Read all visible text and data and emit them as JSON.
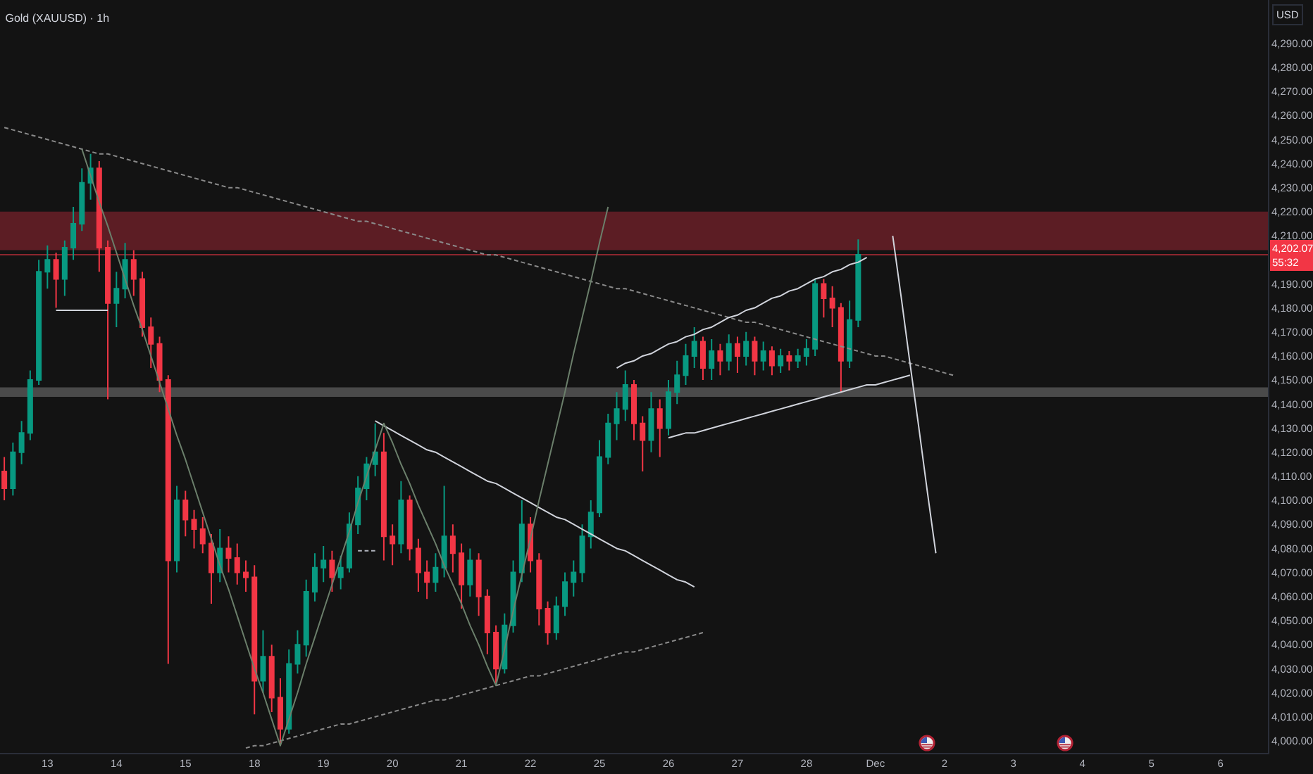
{
  "chart_data": {
    "type": "candlestick",
    "title": "Gold (XAUUSD) · 1h",
    "ylabel": "USD",
    "categories": [
      null,
      null,
      null,
      null,
      null,
      "13",
      null,
      null,
      null,
      null,
      null,
      null,
      null,
      "14",
      null,
      null,
      null,
      null,
      null,
      null,
      null,
      "15",
      null,
      null,
      null,
      null,
      null,
      null,
      null,
      "18",
      null,
      null,
      null,
      null,
      null,
      null,
      null,
      "19",
      null,
      null,
      null,
      null,
      null,
      null,
      null,
      "20",
      null,
      null,
      null,
      null,
      null,
      null,
      null,
      "21",
      null,
      null,
      null,
      null,
      null,
      null,
      null,
      "22",
      null,
      null,
      null,
      null,
      null,
      null,
      null,
      "25",
      null,
      null,
      null,
      null,
      null,
      null,
      null,
      "26",
      null,
      null,
      null,
      null,
      null,
      null,
      null,
      "27",
      null,
      null,
      null,
      null,
      null,
      null,
      null,
      "28",
      null,
      null,
      null,
      null,
      null,
      null,
      null,
      "Dec",
      null,
      null,
      null,
      null,
      null,
      null,
      null,
      "2",
      null,
      null,
      null,
      null,
      null,
      null,
      null,
      "3",
      null,
      null,
      null,
      null,
      null,
      null,
      null,
      "4",
      null,
      null,
      null,
      null,
      null,
      null,
      null,
      "5",
      null,
      null,
      null,
      null,
      null,
      null,
      null,
      "6",
      null,
      null,
      null,
      null,
      null
    ],
    "ylim": [
      3995,
      4308
    ],
    "yticks": [
      {
        "value": 4000,
        "label": "4,000.00"
      },
      {
        "value": 4010,
        "label": "4,010.00"
      },
      {
        "value": 4020,
        "label": "4,020.00"
      },
      {
        "value": 4030,
        "label": "4,030.00"
      },
      {
        "value": 4040,
        "label": "4,040.00"
      },
      {
        "value": 4050,
        "label": "4,050.00"
      },
      {
        "value": 4060,
        "label": "4,060.00"
      },
      {
        "value": 4070,
        "label": "4,070.00"
      },
      {
        "value": 4080,
        "label": "4,080.00"
      },
      {
        "value": 4090,
        "label": "4,090.00"
      },
      {
        "value": 4100,
        "label": "4,100.00"
      },
      {
        "value": 4110,
        "label": "4,110.00"
      },
      {
        "value": 4120,
        "label": "4,120.00"
      },
      {
        "value": 4130,
        "label": "4,130.00"
      },
      {
        "value": 4140,
        "label": "4,140.00"
      },
      {
        "value": 4150,
        "label": "4,150.00"
      },
      {
        "value": 4160,
        "label": "4,160.00"
      },
      {
        "value": 4170,
        "label": "4,170.00"
      },
      {
        "value": 4180,
        "label": "4,180.00"
      },
      {
        "value": 4190,
        "label": "4,190.00"
      },
      {
        "value": 4210,
        "label": "4,210.00"
      },
      {
        "value": 4220,
        "label": "4,220.00"
      },
      {
        "value": 4230,
        "label": "4,230.00"
      },
      {
        "value": 4240,
        "label": "4,240.00"
      },
      {
        "value": 4250,
        "label": "4,250.00"
      },
      {
        "value": 4260,
        "label": "4,260.00"
      },
      {
        "value": 4270,
        "label": "4,270.00"
      },
      {
        "value": 4280,
        "label": "4,280.00"
      },
      {
        "value": 4290,
        "label": "4,290.00"
      }
    ],
    "bands": [
      {
        "axis": "y",
        "from": 4204,
        "to": 4220,
        "color": "#5c1d24"
      },
      {
        "axis": "y",
        "from": 4143,
        "to": 4147,
        "color": "#4a4a4a"
      }
    ],
    "ref_lines": [
      {
        "axis": "y",
        "value": 4202.07,
        "label": "4,202.07\n55:32",
        "color": "#f23645",
        "line_style": "solid"
      }
    ],
    "series": [
      {
        "type": "line",
        "color": "#8a8a8a",
        "line_style": "dashed",
        "values": [
          4255,
          4254,
          4253,
          4252,
          4251,
          4250,
          4249,
          4248,
          4247,
          4246,
          4245,
          4244,
          4244,
          4243,
          4242,
          4241,
          4240,
          4239,
          4238,
          4237,
          4236,
          4235,
          4234,
          4233,
          4232,
          4231,
          4230,
          4230,
          4229,
          4228,
          4227,
          4226,
          4225,
          4224,
          4223,
          4222,
          4221,
          4220,
          4219,
          4218,
          4217,
          4216,
          4216,
          4215,
          4214,
          4213,
          4212,
          4211,
          4210,
          4209,
          4208,
          4207,
          4206,
          4205,
          4204,
          4203,
          4202,
          4202,
          4201,
          4200,
          4199,
          4198,
          4197,
          4196,
          4195,
          4194,
          4193,
          4192,
          4191,
          4190,
          4189,
          4188,
          4188,
          4187,
          4186,
          4185,
          4184,
          4183,
          4182,
          4181,
          4180,
          4179,
          4178,
          4177,
          4176,
          4175,
          4174,
          4174,
          4173,
          4172,
          4171,
          4170,
          4169,
          4168,
          4167,
          4166,
          4165,
          4164,
          4163,
          4162,
          4161,
          4160,
          4160,
          4159,
          4158,
          4157,
          4156,
          4155,
          4154,
          4153,
          4152,
          null,
          null,
          null,
          null,
          null,
          null,
          null,
          null,
          null,
          null,
          null,
          null,
          null,
          null,
          null,
          null,
          null,
          null,
          null,
          null,
          null,
          null,
          null,
          null,
          null,
          null,
          null,
          null,
          null,
          null,
          null,
          null,
          null,
          null,
          null,
          null
        ]
      },
      {
        "type": "line",
        "color": "#d1d4dc",
        "line_style": "solid",
        "values": [
          null,
          null,
          null,
          null,
          null,
          null,
          null,
          null,
          null,
          null,
          null,
          null,
          null,
          null,
          null,
          null,
          null,
          null,
          null,
          null,
          null,
          null,
          null,
          null,
          null,
          null,
          null,
          null,
          null,
          null,
          null,
          null,
          null,
          null,
          null,
          null,
          null,
          null,
          null,
          null,
          null,
          null,
          null,
          null,
          null,
          null,
          null,
          null,
          null,
          null,
          null,
          null,
          null,
          null,
          null,
          null,
          null,
          null,
          null,
          null,
          null,
          null,
          null,
          null,
          null,
          null,
          null,
          null,
          null,
          null,
          null,
          4155,
          4157,
          4158,
          4160,
          4161,
          4163,
          4165,
          4166,
          4168,
          4169,
          4171,
          4172,
          4174,
          4176,
          4177,
          4179,
          4180,
          4182,
          4184,
          4185,
          4187,
          4188,
          4190,
          4192,
          4193,
          4195,
          4196,
          4198,
          4199,
          4201,
          null,
          null,
          null,
          null,
          null,
          null,
          null,
          null,
          null,
          null,
          null,
          null,
          null,
          null,
          null,
          null,
          null,
          null,
          null,
          null,
          null,
          null,
          null,
          null,
          null,
          null,
          null,
          null,
          null,
          null,
          null,
          null,
          null,
          null,
          null,
          null,
          null,
          null,
          null,
          null,
          null,
          null,
          null,
          null,
          null,
          null
        ]
      },
      {
        "type": "line",
        "color": "#d1d4dc",
        "line_style": "solid",
        "values": [
          null,
          null,
          null,
          null,
          null,
          null,
          null,
          null,
          null,
          null,
          null,
          null,
          null,
          null,
          null,
          null,
          null,
          null,
          null,
          null,
          null,
          null,
          null,
          null,
          null,
          null,
          null,
          null,
          null,
          null,
          null,
          null,
          null,
          null,
          null,
          null,
          null,
          null,
          null,
          null,
          null,
          null,
          null,
          null,
          null,
          null,
          null,
          null,
          null,
          null,
          null,
          null,
          null,
          null,
          null,
          null,
          null,
          null,
          null,
          null,
          null,
          null,
          null,
          null,
          null,
          null,
          null,
          null,
          null,
          null,
          null,
          null,
          null,
          null,
          null,
          null,
          null,
          4126,
          4127,
          4128,
          4128,
          4129,
          4130,
          4131,
          4132,
          4133,
          4134,
          4135,
          4136,
          4137,
          4138,
          4139,
          4140,
          4141,
          4142,
          4143,
          4144,
          4145,
          4146,
          4147,
          4148,
          4148,
          4149,
          4150,
          4151,
          4152,
          null,
          null,
          null,
          null,
          null,
          null,
          null,
          null,
          null,
          null,
          null,
          null,
          null,
          null,
          null,
          null,
          null,
          null,
          null,
          null,
          null,
          null,
          null,
          null,
          null,
          null,
          null,
          null,
          null,
          null,
          null,
          null,
          null,
          null,
          null,
          null,
          null,
          null,
          null,
          null,
          null
        ]
      },
      {
        "type": "line",
        "color": "#d1d4dc",
        "line_style": "solid",
        "values": [
          null,
          null,
          null,
          null,
          null,
          null,
          null,
          null,
          null,
          null,
          null,
          null,
          null,
          null,
          null,
          null,
          null,
          null,
          null,
          null,
          null,
          null,
          null,
          null,
          null,
          null,
          null,
          null,
          null,
          null,
          null,
          null,
          null,
          null,
          null,
          null,
          null,
          null,
          null,
          null,
          null,
          null,
          null,
          4133,
          4131,
          4129,
          4127,
          4125,
          4123,
          4121,
          4120,
          4118,
          4116,
          4114,
          4112,
          4110,
          4108,
          4107,
          4105,
          4103,
          4101,
          4099,
          4097,
          4095,
          4093,
          4092,
          4090,
          4088,
          4086,
          4084,
          4082,
          4080,
          4079,
          4077,
          4075,
          4073,
          4071,
          4069,
          4067,
          4066,
          4064,
          null,
          null,
          null,
          null,
          null,
          null,
          null,
          null,
          null,
          null,
          null,
          null,
          null,
          null,
          null,
          null,
          null,
          null,
          null,
          null,
          null,
          null,
          null,
          null,
          null,
          null,
          null,
          null,
          null,
          null,
          null,
          null,
          null,
          null,
          null,
          null,
          null,
          null,
          null,
          null,
          null,
          null,
          null,
          null,
          null,
          null,
          null,
          null,
          null,
          null,
          null,
          null,
          null,
          null,
          null,
          null,
          null,
          null,
          null,
          null,
          null,
          null,
          null,
          null,
          null,
          null
        ]
      },
      {
        "type": "line",
        "color": "#8a8a8a",
        "line_style": "dashed",
        "values": [
          null,
          null,
          null,
          null,
          null,
          null,
          null,
          null,
          null,
          null,
          null,
          null,
          null,
          null,
          null,
          null,
          null,
          null,
          null,
          null,
          null,
          null,
          null,
          null,
          null,
          null,
          null,
          null,
          3997,
          3998,
          3998,
          3999,
          4000,
          4001,
          4002,
          4003,
          4004,
          4005,
          4006,
          4007,
          4007,
          4008,
          4009,
          4010,
          4011,
          4012,
          4013,
          4014,
          4015,
          4016,
          4017,
          4017,
          4018,
          4019,
          4020,
          4021,
          4022,
          4023,
          4024,
          4025,
          4026,
          4027,
          4027,
          4028,
          4029,
          4030,
          4031,
          4032,
          4033,
          4034,
          4035,
          4036,
          4037,
          4037,
          4038,
          4039,
          4040,
          4041,
          4042,
          4043,
          4044,
          4045,
          null,
          null,
          null,
          null,
          null,
          null,
          null,
          null,
          null,
          null,
          null,
          null,
          null,
          null,
          null,
          null,
          null,
          null,
          null,
          null,
          null,
          null,
          null,
          null,
          null,
          null,
          null,
          null,
          null,
          null,
          null,
          null,
          null,
          null,
          null,
          null,
          null,
          null,
          null,
          null,
          null,
          null,
          null,
          null,
          null,
          null,
          null,
          null,
          null,
          null,
          null,
          null,
          null,
          null,
          null,
          null,
          null,
          null,
          null,
          null,
          null,
          null,
          null,
          null,
          null
        ]
      },
      {
        "type": "line",
        "color": "#6b7f6b",
        "line_style": "solid",
        "values": [
          null,
          null,
          null,
          null,
          null,
          null,
          null,
          null,
          null,
          4246,
          4235,
          4224,
          4214,
          4203,
          4192,
          4181,
          4171,
          4160,
          4149,
          4138,
          4127,
          4117,
          4106,
          4095,
          4084,
          4073,
          4063,
          4052,
          4041,
          4030,
          4020,
          4009,
          3998,
          4009,
          4020,
          4032,
          4043,
          4054,
          4065,
          4076,
          4087,
          4099,
          4110,
          4121,
          4132,
          4124,
          4115,
          4107,
          4098,
          4090,
          4082,
          4073,
          4065,
          4057,
          4048,
          4040,
          4031,
          4023,
          4038,
          4054,
          4069,
          4084,
          4100,
          4115,
          4130,
          4145,
          4161,
          4176,
          4191,
          4207,
          4222,
          null,
          null,
          null,
          null,
          null,
          null,
          null,
          null,
          null,
          null,
          null,
          null,
          null,
          null,
          null,
          null,
          null,
          null,
          null,
          null,
          null,
          null,
          null,
          null,
          null,
          null,
          null,
          null,
          null,
          null,
          null,
          null,
          null,
          null,
          null,
          null,
          null,
          null,
          null,
          null,
          null,
          null,
          null,
          null,
          null,
          null,
          null,
          null,
          null,
          null,
          null,
          null,
          null,
          null,
          null,
          null,
          null,
          null,
          null,
          null,
          null,
          null,
          null,
          null,
          null,
          null,
          null,
          null,
          null,
          null,
          null,
          null,
          null,
          null,
          null,
          null
        ]
      },
      {
        "type": "line",
        "color": "#d1d4dc",
        "line_style": "solid",
        "values": [
          null,
          null,
          null,
          null,
          null,
          null,
          4179,
          4179,
          4179,
          4179,
          4179,
          4179,
          4179,
          null,
          null,
          null,
          null,
          null,
          null,
          null,
          null,
          null,
          null,
          null,
          null,
          null,
          null,
          null,
          null,
          null,
          null,
          null,
          null,
          null,
          null,
          null,
          null,
          null,
          null,
          null,
          null,
          null,
          null,
          null,
          null,
          null,
          null,
          null,
          null,
          null,
          null,
          null,
          null,
          null,
          null,
          null,
          null,
          null,
          null,
          null,
          null,
          null,
          null,
          null,
          null,
          null,
          null,
          null,
          null,
          null,
          null,
          null,
          null,
          null,
          null,
          null,
          null,
          null,
          null,
          null,
          null,
          null,
          null,
          null,
          null,
          null,
          null,
          null,
          null,
          null,
          null,
          null,
          null,
          null,
          null,
          null,
          null,
          null,
          null,
          null,
          null,
          null,
          null,
          null,
          null,
          null,
          null,
          null,
          null,
          null,
          null,
          null,
          null,
          null,
          null,
          null,
          null,
          null,
          null,
          null,
          null,
          null,
          null,
          null,
          null,
          null,
          null,
          null,
          null,
          null,
          null,
          null,
          null,
          null,
          null,
          null,
          null,
          null,
          null,
          null,
          null,
          null,
          null,
          null,
          null,
          null,
          null
        ]
      },
      {
        "type": "line",
        "color": "#b2b5be",
        "line_style": "dashed",
        "values": [
          null,
          null,
          null,
          null,
          null,
          null,
          null,
          null,
          null,
          null,
          null,
          null,
          null,
          null,
          null,
          null,
          null,
          null,
          null,
          null,
          null,
          null,
          null,
          null,
          null,
          null,
          null,
          null,
          null,
          null,
          null,
          null,
          null,
          null,
          null,
          null,
          null,
          null,
          null,
          null,
          null,
          4079,
          4079,
          4079,
          null,
          null,
          null,
          null,
          null,
          null,
          null,
          null,
          null,
          null,
          null,
          null,
          null,
          null,
          null,
          null,
          null,
          null,
          null,
          null,
          null,
          null,
          null,
          null,
          null,
          null,
          null,
          null,
          null,
          null,
          null,
          null,
          null,
          null,
          null,
          null,
          null,
          null,
          null,
          null,
          null,
          null,
          null,
          null,
          null,
          null,
          null,
          null,
          null,
          null,
          null,
          null,
          null,
          null,
          null,
          null,
          null,
          null,
          null,
          null,
          null,
          null,
          null,
          null,
          null,
          null,
          null,
          null,
          null,
          null,
          null,
          null,
          null,
          null,
          null,
          null,
          null,
          null,
          null,
          null,
          null,
          null,
          null,
          null,
          null,
          null,
          null,
          null,
          null,
          null,
          null,
          null,
          null,
          null,
          null,
          null,
          null,
          null,
          null,
          null,
          null,
          null,
          null
        ]
      },
      {
        "type": "line",
        "color": "#d1d4dc",
        "line_style": "solid",
        "values": [
          null,
          null,
          null,
          null,
          null,
          null,
          null,
          null,
          null,
          null,
          null,
          null,
          null,
          null,
          null,
          null,
          null,
          null,
          null,
          null,
          null,
          null,
          null,
          null,
          null,
          null,
          null,
          null,
          null,
          null,
          null,
          null,
          null,
          null,
          null,
          null,
          null,
          null,
          null,
          null,
          null,
          null,
          null,
          null,
          null,
          null,
          null,
          null,
          null,
          null,
          null,
          null,
          null,
          null,
          null,
          null,
          null,
          null,
          null,
          null,
          null,
          null,
          null,
          null,
          null,
          null,
          null,
          null,
          null,
          null,
          null,
          null,
          null,
          null,
          null,
          null,
          null,
          null,
          null,
          null,
          null,
          null,
          null,
          null,
          null,
          null,
          null,
          null,
          null,
          null,
          null,
          null,
          null,
          null,
          null,
          null,
          null,
          null,
          null,
          null,
          null,
          null,
          null,
          4210,
          4184,
          4157,
          4131,
          4104,
          4078,
          null,
          null,
          null,
          null,
          null,
          null,
          null,
          null,
          null,
          null,
          null,
          null,
          null,
          null,
          null,
          null,
          null,
          null,
          null,
          null,
          null,
          null,
          null,
          null,
          null,
          null,
          null,
          null,
          null,
          null,
          null,
          null,
          null,
          null,
          null,
          null,
          null,
          null
        ]
      },
      {
        "ohlc": [
          [
            4112,
            4118,
            4100,
            4105
          ],
          [
            4105,
            4124,
            4102,
            4120
          ],
          [
            4120,
            4133,
            4115,
            4128
          ],
          [
            4128,
            4154,
            4125,
            4150
          ],
          [
            4150,
            4200,
            4148,
            4195
          ],
          [
            4195,
            4206,
            4188,
            4200
          ],
          [
            4200,
            4203,
            4180,
            4192
          ],
          [
            4192,
            4208,
            4185,
            4205
          ],
          [
            4205,
            4222,
            4200,
            4215
          ],
          [
            4215,
            4238,
            4212,
            4232
          ],
          [
            4232,
            4244,
            4225,
            4238
          ],
          [
            4238,
            4241,
            4195,
            4205
          ],
          [
            4205,
            4208,
            4142,
            4182
          ],
          [
            4182,
            4195,
            4172,
            4188
          ],
          [
            4188,
            4207,
            4184,
            4200
          ],
          [
            4200,
            4204,
            4185,
            4192
          ],
          [
            4192,
            4195,
            4168,
            4172
          ],
          [
            4172,
            4176,
            4155,
            4165
          ],
          [
            4165,
            4168,
            4145,
            4150
          ],
          [
            4150,
            4152,
            4032,
            4075
          ],
          [
            4075,
            4106,
            4070,
            4100
          ],
          [
            4100,
            4104,
            4085,
            4092
          ],
          [
            4092,
            4096,
            4080,
            4088
          ],
          [
            4088,
            4093,
            4078,
            4082
          ],
          [
            4082,
            4086,
            4057,
            4070
          ],
          [
            4070,
            4088,
            4066,
            4080
          ],
          [
            4080,
            4085,
            4070,
            4076
          ],
          [
            4076,
            4082,
            4065,
            4070
          ],
          [
            4070,
            4075,
            4062,
            4068
          ],
          [
            4068,
            4073,
            4011,
            4025
          ],
          [
            4025,
            4046,
            4020,
            4035
          ],
          [
            4035,
            4040,
            4012,
            4018
          ],
          [
            4018,
            4026,
            3998,
            4005
          ],
          [
            4005,
            4038,
            4003,
            4032
          ],
          [
            4032,
            4046,
            4028,
            4040
          ],
          [
            4040,
            4067,
            4035,
            4062
          ],
          [
            4062,
            4078,
            4058,
            4072
          ],
          [
            4072,
            4081,
            4066,
            4075
          ],
          [
            4075,
            4079,
            4062,
            4068
          ],
          [
            4068,
            4077,
            4063,
            4072
          ],
          [
            4072,
            4095,
            4070,
            4090
          ],
          [
            4090,
            4110,
            4086,
            4105
          ],
          [
            4105,
            4118,
            4100,
            4115
          ],
          [
            4115,
            4132,
            4110,
            4120
          ],
          [
            4120,
            4128,
            4075,
            4085
          ],
          [
            4085,
            4090,
            4073,
            4082
          ],
          [
            4082,
            4108,
            4078,
            4100
          ],
          [
            4100,
            4102,
            4075,
            4080
          ],
          [
            4080,
            4084,
            4062,
            4070
          ],
          [
            4070,
            4075,
            4059,
            4066
          ],
          [
            4066,
            4078,
            4062,
            4072
          ],
          [
            4072,
            4106,
            4068,
            4085
          ],
          [
            4085,
            4090,
            4070,
            4078
          ],
          [
            4078,
            4082,
            4055,
            4065
          ],
          [
            4065,
            4080,
            4060,
            4075
          ],
          [
            4075,
            4078,
            4052,
            4060
          ],
          [
            4060,
            4063,
            4036,
            4045
          ],
          [
            4045,
            4048,
            4024,
            4030
          ],
          [
            4030,
            4053,
            4028,
            4048
          ],
          [
            4048,
            4075,
            4045,
            4070
          ],
          [
            4070,
            4100,
            4066,
            4090
          ],
          [
            4090,
            4093,
            4070,
            4075
          ],
          [
            4075,
            4078,
            4048,
            4055
          ],
          [
            4055,
            4058,
            4040,
            4045
          ],
          [
            4045,
            4060,
            4042,
            4056
          ],
          [
            4056,
            4070,
            4052,
            4066
          ],
          [
            4066,
            4075,
            4060,
            4070
          ],
          [
            4070,
            4090,
            4066,
            4085
          ],
          [
            4085,
            4100,
            4080,
            4095
          ],
          [
            4095,
            4125,
            4093,
            4118
          ],
          [
            4118,
            4136,
            4115,
            4132
          ],
          [
            4132,
            4145,
            4125,
            4138
          ],
          [
            4138,
            4154,
            4133,
            4148
          ],
          [
            4148,
            4150,
            4125,
            4132
          ],
          [
            4132,
            4135,
            4112,
            4125
          ],
          [
            4125,
            4145,
            4120,
            4138
          ],
          [
            4138,
            4142,
            4118,
            4130
          ],
          [
            4130,
            4150,
            4127,
            4145
          ],
          [
            4145,
            4158,
            4140,
            4152
          ],
          [
            4152,
            4165,
            4148,
            4160
          ],
          [
            4160,
            4172,
            4155,
            4166
          ],
          [
            4166,
            4168,
            4150,
            4155
          ],
          [
            4155,
            4167,
            4150,
            4162
          ],
          [
            4162,
            4165,
            4152,
            4158
          ],
          [
            4158,
            4169,
            4154,
            4165
          ],
          [
            4165,
            4168,
            4153,
            4160
          ],
          [
            4160,
            4170,
            4156,
            4166
          ],
          [
            4166,
            4168,
            4152,
            4158
          ],
          [
            4158,
            4166,
            4154,
            4162
          ],
          [
            4162,
            4164,
            4152,
            4156
          ],
          [
            4156,
            4163,
            4153,
            4160
          ],
          [
            4160,
            4162,
            4154,
            4158
          ],
          [
            4158,
            4163,
            4155,
            4160
          ],
          [
            4160,
            4167,
            4156,
            4163
          ],
          [
            4163,
            4192,
            4160,
            4190
          ],
          [
            4190,
            4192,
            4176,
            4184
          ],
          [
            4184,
            4189,
            4172,
            4180
          ],
          [
            4180,
            4182,
            4145,
            4158
          ],
          [
            4158,
            4183,
            4155,
            4175
          ],
          [
            4175,
            4208.5,
            4172,
            4202.07
          ],
          null,
          null,
          null,
          null,
          null,
          null,
          null,
          null,
          null,
          null,
          null,
          null,
          null,
          null,
          null,
          null,
          null,
          null,
          null,
          null,
          null,
          null,
          null,
          null,
          null,
          null,
          null,
          null,
          null,
          null,
          null,
          null,
          null,
          null,
          null,
          null,
          null,
          null,
          null,
          null,
          null,
          null,
          null,
          null,
          null,
          null,
          null
        ],
        "colors": [
          "#f23645",
          "#089981",
          "#089981",
          "#089981",
          "#089981",
          "#089981",
          "#f23645",
          "#089981",
          "#089981",
          "#089981",
          "#089981",
          "#f23645",
          "#f23645",
          "#089981",
          "#089981",
          "#f23645",
          "#f23645",
          "#f23645",
          "#f23645",
          "#f23645",
          "#089981",
          "#f23645",
          "#f23645",
          "#f23645",
          "#f23645",
          "#089981",
          "#f23645",
          "#f23645",
          "#f23645",
          "#f23645",
          "#089981",
          "#f23645",
          "#f23645",
          "#089981",
          "#089981",
          "#089981",
          "#089981",
          "#089981",
          "#f23645",
          "#089981",
          "#089981",
          "#089981",
          "#089981",
          "#089981",
          "#f23645",
          "#f23645",
          "#089981",
          "#f23645",
          "#f23645",
          "#f23645",
          "#089981",
          "#089981",
          "#f23645",
          "#f23645",
          "#089981",
          "#f23645",
          "#f23645",
          "#f23645",
          "#089981",
          "#089981",
          "#089981",
          "#f23645",
          "#f23645",
          "#f23645",
          "#089981",
          "#089981",
          "#089981",
          "#089981",
          "#089981",
          "#089981",
          "#089981",
          "#089981",
          "#089981",
          "#f23645",
          "#f23645",
          "#089981",
          "#f23645",
          "#089981",
          "#089981",
          "#089981",
          "#089981",
          "#f23645",
          "#089981",
          "#f23645",
          "#089981",
          "#f23645",
          "#089981",
          "#f23645",
          "#089981",
          "#f23645",
          "#089981",
          "#f23645",
          "#089981",
          "#089981",
          "#089981",
          "#f23645",
          "#f23645",
          "#f23645",
          "#089981",
          "#089981",
          null,
          null,
          null,
          null,
          null,
          null,
          null,
          null,
          null,
          null,
          null,
          null,
          null,
          null,
          null,
          null,
          null,
          null,
          null,
          null,
          null,
          null,
          null,
          null,
          null,
          null,
          null,
          null,
          null,
          null,
          null,
          null,
          null,
          null,
          null,
          null,
          null,
          null,
          null,
          null,
          null,
          null,
          null,
          null,
          null,
          null,
          null
        ]
      }
    ]
  }
}
